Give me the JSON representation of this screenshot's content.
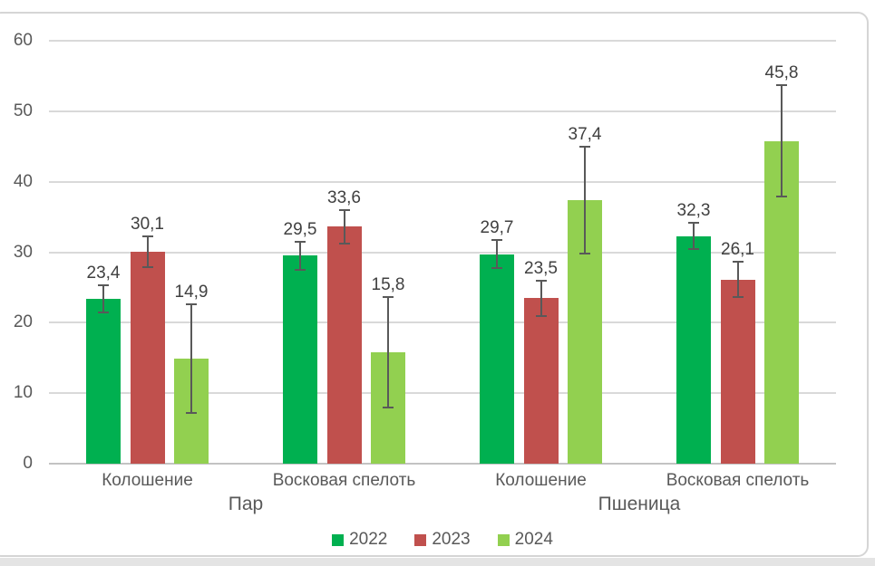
{
  "chart_data": {
    "type": "bar",
    "title": "",
    "ylim": [
      0,
      60
    ],
    "yticks": [
      0,
      10,
      20,
      30,
      40,
      50,
      60
    ],
    "grid": true,
    "error_bars": true,
    "legend_position": "bottom",
    "decimal_separator": ",",
    "categories": [
      "Колошение",
      "Восковая спелоть",
      "Колошение",
      "Восковая спелоть"
    ],
    "outer_groups": [
      {
        "label": "Пар",
        "span": [
          0,
          1
        ]
      },
      {
        "label": "Пшеница",
        "span": [
          2,
          3
        ]
      }
    ],
    "series": [
      {
        "name": "2022",
        "color": "#00B050",
        "values": [
          23.4,
          29.5,
          29.7,
          32.3
        ],
        "errors": [
          1.9,
          2.0,
          2.0,
          1.9
        ],
        "labels": [
          "23,4",
          "29,5",
          "29,7",
          "32,3"
        ]
      },
      {
        "name": "2023",
        "color": "#C0504D",
        "values": [
          30.1,
          33.6,
          23.5,
          26.1
        ],
        "errors": [
          2.2,
          2.4,
          2.5,
          2.5
        ],
        "labels": [
          "30,1",
          "33,6",
          "23,5",
          "26,1"
        ]
      },
      {
        "name": "2024",
        "color": "#92D050",
        "values": [
          14.9,
          15.8,
          37.4,
          45.8
        ],
        "errors": [
          7.7,
          7.8,
          7.6,
          7.9
        ],
        "labels": [
          "14,9",
          "15,8",
          "37,4",
          "45,8"
        ]
      }
    ],
    "legend": [
      {
        "label": "2022",
        "color": "#00B050"
      },
      {
        "label": "2023",
        "color": "#C0504D"
      },
      {
        "label": "2024",
        "color": "#92D050"
      }
    ]
  },
  "style_colors": {
    "gridline": "#d9d9d9",
    "axis_baseline": "#c3c3c3",
    "error_bar": "#595959",
    "tick_text": "#595959",
    "category_text": "#595959",
    "group_text": "#595959",
    "legend_text": "#595959",
    "data_label_text": "#404040",
    "frame_border": "#d5d5d5"
  }
}
